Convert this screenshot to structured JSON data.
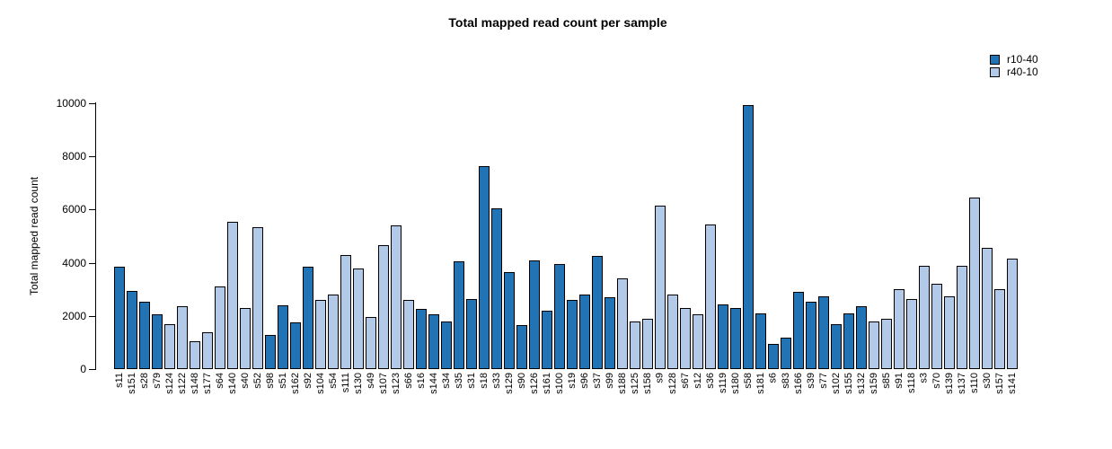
{
  "chart_data": {
    "type": "bar",
    "title": "Total mapped read count per sample",
    "xlabel": "",
    "ylabel": "Total mapped read count",
    "ylim": [
      0,
      10000
    ],
    "yticks": [
      0,
      2000,
      4000,
      6000,
      8000,
      10000
    ],
    "grid": false,
    "legend_position": "top-right",
    "series_colors": {
      "r10-40": "#2273B4",
      "r40-10": "#B2C9E8"
    },
    "legend": [
      {
        "label": "r10-40",
        "color": "#2273B4"
      },
      {
        "label": "r40-10",
        "color": "#B2C9E8"
      }
    ],
    "bars": [
      {
        "label": "s11",
        "value": 3850,
        "series": "r10-40"
      },
      {
        "label": "s151",
        "value": 2950,
        "series": "r10-40"
      },
      {
        "label": "s28",
        "value": 2550,
        "series": "r10-40"
      },
      {
        "label": "s79",
        "value": 2050,
        "series": "r10-40"
      },
      {
        "label": "s124",
        "value": 1700,
        "series": "r40-10"
      },
      {
        "label": "s122",
        "value": 2350,
        "series": "r40-10"
      },
      {
        "label": "s148",
        "value": 1050,
        "series": "r40-10"
      },
      {
        "label": "s177",
        "value": 1400,
        "series": "r40-10"
      },
      {
        "label": "s64",
        "value": 3100,
        "series": "r40-10"
      },
      {
        "label": "s140",
        "value": 5550,
        "series": "r40-10"
      },
      {
        "label": "s40",
        "value": 2300,
        "series": "r40-10"
      },
      {
        "label": "s52",
        "value": 5350,
        "series": "r40-10"
      },
      {
        "label": "s98",
        "value": 1300,
        "series": "r10-40"
      },
      {
        "label": "s51",
        "value": 2400,
        "series": "r10-40"
      },
      {
        "label": "s162",
        "value": 1750,
        "series": "r10-40"
      },
      {
        "label": "s92",
        "value": 3850,
        "series": "r10-40"
      },
      {
        "label": "s104",
        "value": 2600,
        "series": "r40-10"
      },
      {
        "label": "s54",
        "value": 2800,
        "series": "r40-10"
      },
      {
        "label": "s111",
        "value": 4300,
        "series": "r40-10"
      },
      {
        "label": "s130",
        "value": 3800,
        "series": "r40-10"
      },
      {
        "label": "s49",
        "value": 1950,
        "series": "r40-10"
      },
      {
        "label": "s107",
        "value": 4650,
        "series": "r40-10"
      },
      {
        "label": "s123",
        "value": 5400,
        "series": "r40-10"
      },
      {
        "label": "s66",
        "value": 2600,
        "series": "r40-10"
      },
      {
        "label": "s16",
        "value": 2250,
        "series": "r10-40"
      },
      {
        "label": "s144",
        "value": 2050,
        "series": "r10-40"
      },
      {
        "label": "s34",
        "value": 1800,
        "series": "r10-40"
      },
      {
        "label": "s35",
        "value": 4050,
        "series": "r10-40"
      },
      {
        "label": "s31",
        "value": 2650,
        "series": "r10-40"
      },
      {
        "label": "s18",
        "value": 7650,
        "series": "r10-40"
      },
      {
        "label": "s33",
        "value": 6050,
        "series": "r10-40"
      },
      {
        "label": "s129",
        "value": 3650,
        "series": "r10-40"
      },
      {
        "label": "s90",
        "value": 1650,
        "series": "r10-40"
      },
      {
        "label": "s126",
        "value": 4100,
        "series": "r10-40"
      },
      {
        "label": "s161",
        "value": 2200,
        "series": "r10-40"
      },
      {
        "label": "s100",
        "value": 3950,
        "series": "r10-40"
      },
      {
        "label": "s19",
        "value": 2600,
        "series": "r10-40"
      },
      {
        "label": "s96",
        "value": 2800,
        "series": "r10-40"
      },
      {
        "label": "s37",
        "value": 4250,
        "series": "r10-40"
      },
      {
        "label": "s99",
        "value": 2700,
        "series": "r10-40"
      },
      {
        "label": "s188",
        "value": 3400,
        "series": "r40-10"
      },
      {
        "label": "s125",
        "value": 1800,
        "series": "r40-10"
      },
      {
        "label": "s158",
        "value": 1900,
        "series": "r40-10"
      },
      {
        "label": "s9",
        "value": 6150,
        "series": "r40-10"
      },
      {
        "label": "s128",
        "value": 2800,
        "series": "r40-10"
      },
      {
        "label": "s67",
        "value": 2300,
        "series": "r40-10"
      },
      {
        "label": "s12",
        "value": 2050,
        "series": "r40-10"
      },
      {
        "label": "s36",
        "value": 5450,
        "series": "r40-10"
      },
      {
        "label": "s119",
        "value": 2450,
        "series": "r10-40"
      },
      {
        "label": "s180",
        "value": 2300,
        "series": "r10-40"
      },
      {
        "label": "s58",
        "value": 9950,
        "series": "r10-40"
      },
      {
        "label": "s181",
        "value": 2100,
        "series": "r10-40"
      },
      {
        "label": "s6",
        "value": 950,
        "series": "r10-40"
      },
      {
        "label": "s83",
        "value": 1200,
        "series": "r10-40"
      },
      {
        "label": "s166",
        "value": 2900,
        "series": "r10-40"
      },
      {
        "label": "s39",
        "value": 2550,
        "series": "r10-40"
      },
      {
        "label": "s77",
        "value": 2750,
        "series": "r10-40"
      },
      {
        "label": "s102",
        "value": 1700,
        "series": "r10-40"
      },
      {
        "label": "s155",
        "value": 2100,
        "series": "r10-40"
      },
      {
        "label": "s132",
        "value": 2350,
        "series": "r10-40"
      },
      {
        "label": "s159",
        "value": 1800,
        "series": "r40-10"
      },
      {
        "label": "s85",
        "value": 1900,
        "series": "r40-10"
      },
      {
        "label": "s91",
        "value": 3000,
        "series": "r40-10"
      },
      {
        "label": "s118",
        "value": 2650,
        "series": "r40-10"
      },
      {
        "label": "s3",
        "value": 3900,
        "series": "r40-10"
      },
      {
        "label": "s70",
        "value": 3200,
        "series": "r40-10"
      },
      {
        "label": "s139",
        "value": 2750,
        "series": "r40-10"
      },
      {
        "label": "s137",
        "value": 3900,
        "series": "r40-10"
      },
      {
        "label": "s110",
        "value": 6450,
        "series": "r40-10"
      },
      {
        "label": "s30",
        "value": 4550,
        "series": "r40-10"
      },
      {
        "label": "s157",
        "value": 3000,
        "series": "r40-10"
      },
      {
        "label": "s141",
        "value": 4150,
        "series": "r40-10"
      }
    ]
  }
}
